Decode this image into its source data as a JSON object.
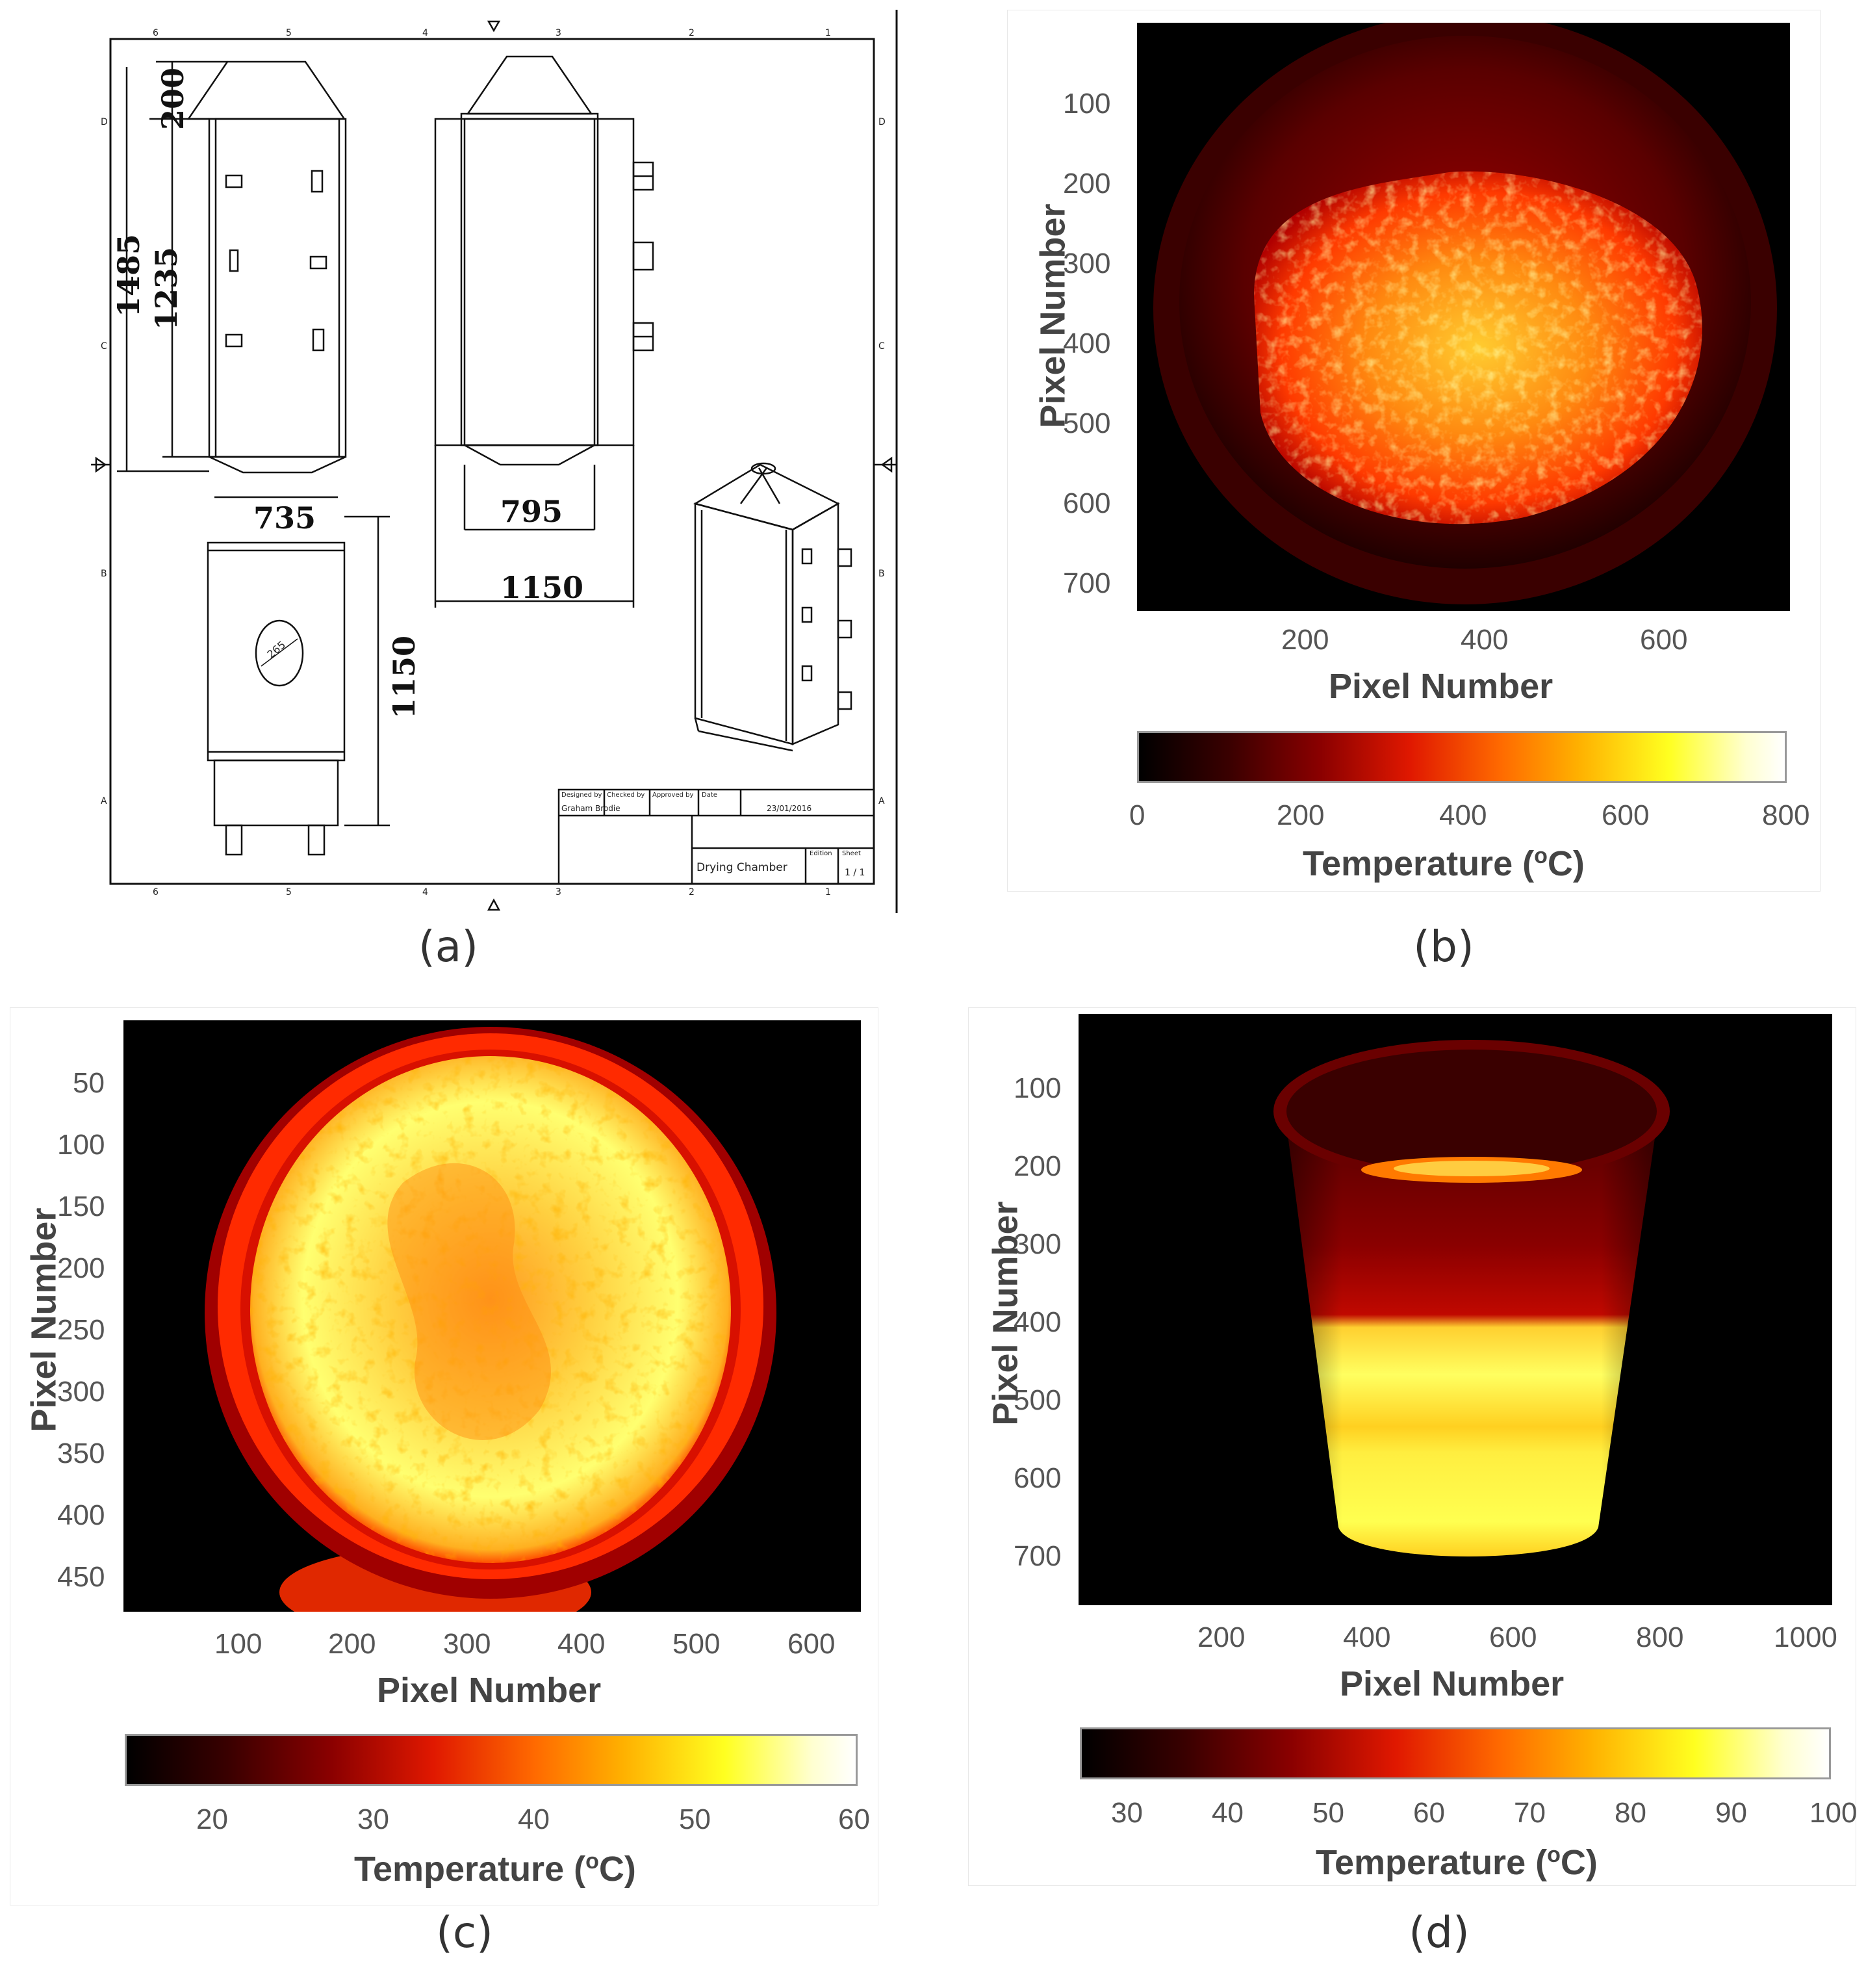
{
  "panels": {
    "a": {
      "caption": "(a)",
      "dimensions": {
        "d200": "200",
        "d1485": "1485",
        "d1235": "1235",
        "d735": "735",
        "d795": "795",
        "d1150_top": "1150",
        "d1150_side": "1150",
        "hole": "265"
      },
      "title_block": {
        "designed_by_label": "Designed by",
        "designed_by": "Graham Brodie",
        "checked_by_label": "Checked by",
        "approved_by_label": "Approved by",
        "date_label": "Date",
        "date": "23/01/2016",
        "title": "Drying Chamber",
        "edition_label": "Edition",
        "sheet_label": "Sheet",
        "sheet": "1 / 1"
      },
      "border_numbers": [
        "6",
        "5",
        "4",
        "3",
        "2",
        "1"
      ],
      "border_letters": [
        "D",
        "C",
        "B",
        "A"
      ]
    },
    "b": {
      "caption": "(b)"
    },
    "c": {
      "caption": "(c)"
    },
    "d": {
      "caption": "(d)"
    }
  },
  "colors": {
    "hot": "#ffff80",
    "warm": "#ff3000",
    "cool": "#000000"
  },
  "chart_data": [
    {
      "type": "heatmap",
      "panel": "b",
      "xlabel": "Pixel Number",
      "ylabel": "Pixel Number",
      "x_ticks": [
        "200",
        "400",
        "600"
      ],
      "y_ticks": [
        "100",
        "200",
        "300",
        "400",
        "500",
        "600",
        "700"
      ],
      "colorbar": {
        "label": "Temperature (oC)",
        "label_main": "Temperature (",
        "label_sup": "o",
        "label_end": "C)",
        "ticks": [
          "0",
          "200",
          "400",
          "600",
          "800"
        ],
        "range": [
          0,
          800
        ]
      }
    },
    {
      "type": "heatmap",
      "panel": "c",
      "xlabel": "Pixel Number",
      "ylabel": "Pixel Number",
      "x_ticks": [
        "100",
        "200",
        "300",
        "400",
        "500",
        "600"
      ],
      "y_ticks": [
        "50",
        "100",
        "150",
        "200",
        "250",
        "300",
        "350",
        "400",
        "450"
      ],
      "colorbar": {
        "label": "Temperature (oC)",
        "label_main": "Temperature (",
        "label_sup": "o",
        "label_end": "C)",
        "ticks": [
          "20",
          "30",
          "40",
          "50",
          "60"
        ],
        "range": [
          15,
          60
        ]
      }
    },
    {
      "type": "heatmap",
      "panel": "d",
      "xlabel": "Pixel Number",
      "ylabel": "Pixel Number",
      "x_ticks": [
        "200",
        "400",
        "600",
        "800",
        "1000"
      ],
      "y_ticks": [
        "100",
        "200",
        "300",
        "400",
        "500",
        "600",
        "700"
      ],
      "colorbar": {
        "label": "Temperature (oC)",
        "label_main": "Temperature (",
        "label_sup": "o",
        "label_end": "C)",
        "ticks": [
          "30",
          "40",
          "50",
          "60",
          "70",
          "80",
          "90",
          "100"
        ],
        "range": [
          27,
          100
        ]
      }
    }
  ]
}
